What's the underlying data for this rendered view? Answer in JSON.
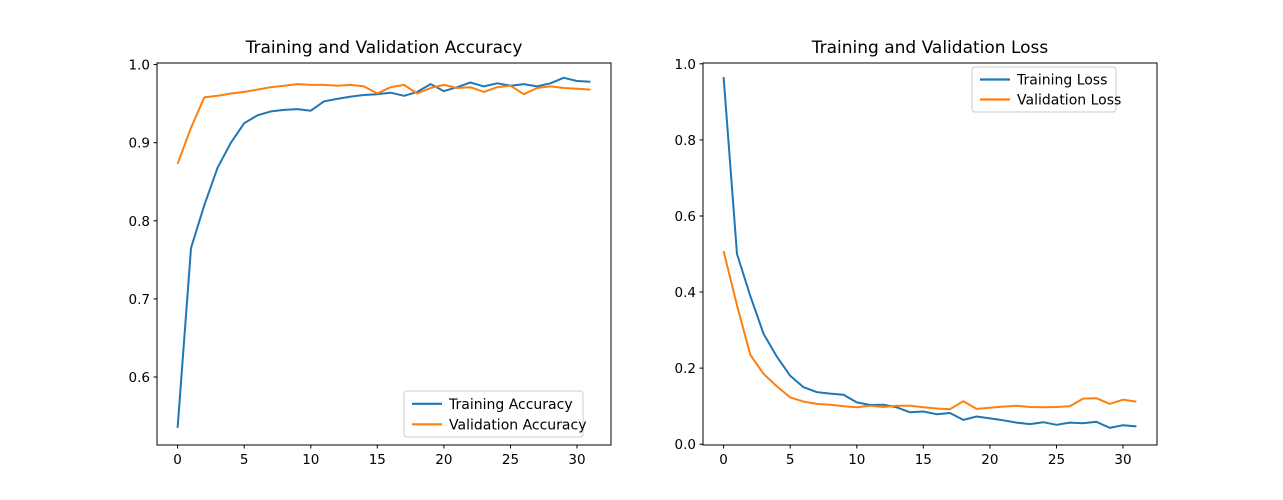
{
  "figure": {
    "background_color": "#ffffff"
  },
  "chart_data": [
    {
      "type": "line",
      "title": "Training and Validation Accuracy",
      "xlabel": "",
      "ylabel": "",
      "grid": false,
      "legend_position": "lower right",
      "x": [
        0,
        1,
        2,
        3,
        4,
        5,
        6,
        7,
        8,
        9,
        10,
        11,
        12,
        13,
        14,
        15,
        16,
        17,
        18,
        19,
        20,
        21,
        22,
        23,
        24,
        25,
        26,
        27,
        28,
        29,
        30,
        31
      ],
      "xlim": [
        -1.55,
        32.55
      ],
      "ylim": [
        0.513,
        1.002
      ],
      "xticks": [
        0,
        5,
        10,
        15,
        20,
        25,
        30
      ],
      "yticks": [
        0.6,
        0.7,
        0.8,
        0.9,
        1.0
      ],
      "ytick_decimals": 1,
      "series": [
        {
          "name": "Training Accuracy",
          "color": "#1f77b4",
          "values": [
            0.535,
            0.765,
            0.82,
            0.868,
            0.9,
            0.925,
            0.935,
            0.94,
            0.942,
            0.943,
            0.941,
            0.953,
            0.956,
            0.959,
            0.961,
            0.962,
            0.964,
            0.96,
            0.965,
            0.975,
            0.966,
            0.971,
            0.977,
            0.972,
            0.976,
            0.973,
            0.975,
            0.972,
            0.976,
            0.983,
            0.979,
            0.978
          ]
        },
        {
          "name": "Validation Accuracy",
          "color": "#ff7f0e",
          "values": [
            0.873,
            0.919,
            0.958,
            0.96,
            0.963,
            0.965,
            0.968,
            0.971,
            0.973,
            0.975,
            0.974,
            0.974,
            0.973,
            0.974,
            0.972,
            0.963,
            0.971,
            0.974,
            0.963,
            0.97,
            0.974,
            0.97,
            0.971,
            0.965,
            0.971,
            0.973,
            0.962,
            0.97,
            0.972,
            0.97,
            0.969,
            0.968
          ]
        }
      ]
    },
    {
      "type": "line",
      "title": "Training and Validation Loss",
      "xlabel": "",
      "ylabel": "",
      "grid": false,
      "legend_position": "upper right",
      "x": [
        0,
        1,
        2,
        3,
        4,
        5,
        6,
        7,
        8,
        9,
        10,
        11,
        12,
        13,
        14,
        15,
        16,
        17,
        18,
        19,
        20,
        21,
        22,
        23,
        24,
        25,
        26,
        27,
        28,
        29,
        30,
        31
      ],
      "xlim": [
        -1.55,
        32.55
      ],
      "ylim": [
        -0.002,
        1.002
      ],
      "xticks": [
        0,
        5,
        10,
        15,
        20,
        25,
        30
      ],
      "yticks": [
        0.0,
        0.2,
        0.4,
        0.6,
        0.8,
        1.0
      ],
      "ytick_decimals": 1,
      "series": [
        {
          "name": "Training Loss",
          "color": "#1f77b4",
          "values": [
            0.965,
            0.5,
            0.39,
            0.29,
            0.23,
            0.18,
            0.15,
            0.137,
            0.133,
            0.13,
            0.11,
            0.103,
            0.104,
            0.097,
            0.084,
            0.086,
            0.079,
            0.082,
            0.064,
            0.073,
            0.068,
            0.063,
            0.057,
            0.053,
            0.058,
            0.051,
            0.057,
            0.055,
            0.059,
            0.043,
            0.05,
            0.047
          ]
        },
        {
          "name": "Validation Loss",
          "color": "#ff7f0e",
          "values": [
            0.508,
            0.365,
            0.235,
            0.185,
            0.152,
            0.123,
            0.112,
            0.106,
            0.104,
            0.1,
            0.097,
            0.101,
            0.098,
            0.101,
            0.101,
            0.097,
            0.094,
            0.092,
            0.113,
            0.093,
            0.096,
            0.099,
            0.101,
            0.098,
            0.097,
            0.098,
            0.1,
            0.12,
            0.121,
            0.106,
            0.117,
            0.112
          ]
        }
      ]
    }
  ]
}
